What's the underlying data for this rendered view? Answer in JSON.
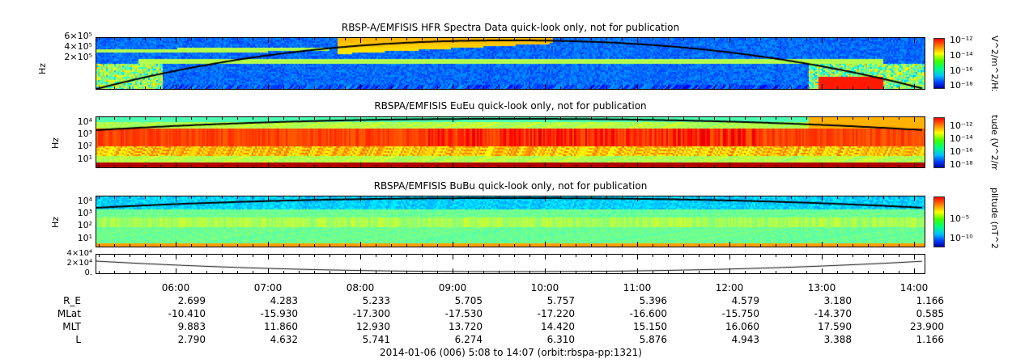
{
  "chart_data": {
    "type": "heatmap",
    "panels": [
      {
        "title": "RBSP-A/EMFISIS  HFR Spectra Data quick-look only, not for publication",
        "ylabel": "Hz",
        "yticks": [
          "6×10⁵",
          "4×10⁵",
          "2×10⁵"
        ],
        "colorbar_label": "V^2/m^2/Hz",
        "colorbar_ticks": [
          "10⁻¹²",
          "10⁻¹⁴",
          "10⁻¹⁶",
          "10⁻¹⁸"
        ]
      },
      {
        "title": "RBSPA/EMFISIS  EuEu quick-look only, not for publication",
        "ylabel": "Hz",
        "yticks": [
          "10⁴",
          "10³",
          "10²",
          "10¹"
        ],
        "colorbar_label": "tude (V^2/m^",
        "colorbar_ticks": [
          "10⁻¹²",
          "10⁻¹⁴",
          "10⁻¹⁶",
          "10⁻¹⁸"
        ]
      },
      {
        "title": "RBSPA/EMFISIS  BuBu quick-look only, not for publication",
        "ylabel": "Hz",
        "yticks": [
          "10⁴",
          "10³",
          "10²",
          "10¹"
        ],
        "colorbar_label": "plitude (nT^2",
        "colorbar_ticks": [
          "10⁻⁵",
          "10⁻¹⁰"
        ]
      },
      {
        "title": "",
        "ylabel": "",
        "yticks": [
          "4×10⁴",
          "2×10⁴",
          "0."
        ]
      }
    ],
    "x_ticks": [
      "06:00",
      "07:00",
      "08:00",
      "09:00",
      "10:00",
      "11:00",
      "12:00",
      "13:00",
      "14:00"
    ],
    "x_range": [
      "05:08",
      "14:07"
    ],
    "ephemeris": [
      {
        "label": "R_E",
        "values": [
          "2.699",
          "4.283",
          "5.233",
          "5.705",
          "5.757",
          "5.396",
          "4.579",
          "3.180",
          "1.166"
        ]
      },
      {
        "label": "MLat",
        "values": [
          "-10.410",
          "-15.930",
          "-17.300",
          "-17.530",
          "-17.220",
          "-16.600",
          "-15.750",
          "-14.370",
          "0.585"
        ]
      },
      {
        "label": "MLT",
        "values": [
          "9.883",
          "11.860",
          "12.930",
          "13.720",
          "14.420",
          "15.150",
          "16.060",
          "17.590",
          "23.900"
        ]
      },
      {
        "label": "L",
        "values": [
          "2.790",
          "4.632",
          "5.741",
          "6.274",
          "6.310",
          "5.876",
          "4.943",
          "3.388",
          "1.166"
        ]
      }
    ],
    "footer": "2014-01-06 (006) 5:08 to 14:07 (orbit:rbspa-pp:1321)"
  }
}
